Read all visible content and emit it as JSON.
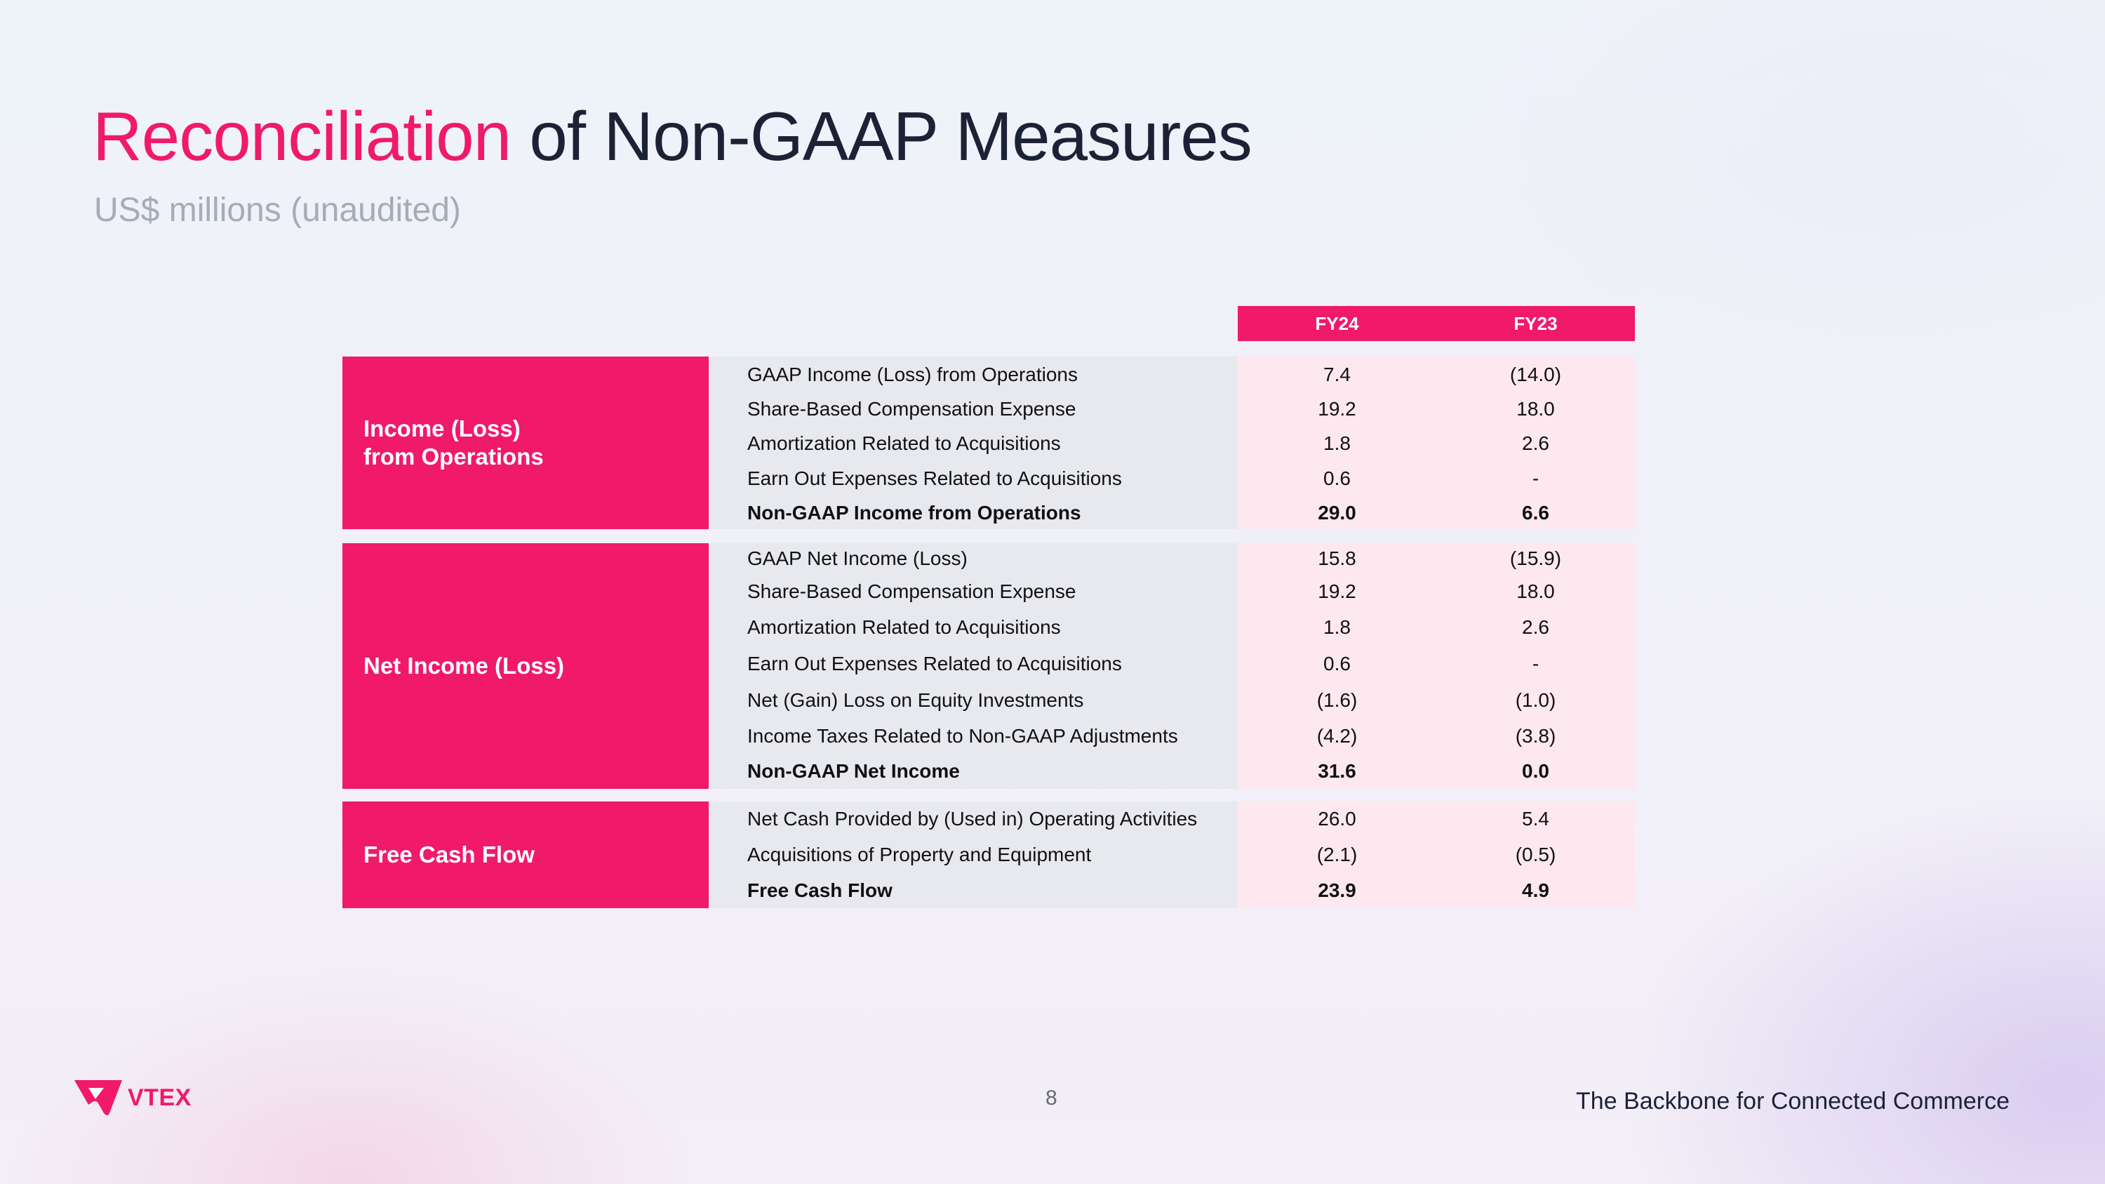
{
  "title": {
    "accent": "Reconciliation",
    "rest": " of Non-GAAP Measures"
  },
  "subtitle": "US$ millions (unaudited)",
  "table": {
    "columns": [
      "FY24",
      "FY23"
    ],
    "groups": [
      {
        "label_lines": [
          "Income (Loss)",
          "from Operations"
        ],
        "rows": [
          {
            "label": "GAAP Income (Loss) from Operations",
            "fy24": "7.4",
            "fy23": "(14.0)",
            "bold": false
          },
          {
            "label": "Share-Based Compensation Expense",
            "fy24": "19.2",
            "fy23": "18.0",
            "bold": false
          },
          {
            "label": "Amortization Related to Acquisitions",
            "fy24": "1.8",
            "fy23": "2.6",
            "bold": false
          },
          {
            "label": "Earn Out Expenses Related to Acquisitions",
            "fy24": "0.6",
            "fy23": "-",
            "bold": false
          },
          {
            "label": "Non-GAAP Income from Operations",
            "fy24": "29.0",
            "fy23": "6.6",
            "bold": true
          }
        ]
      },
      {
        "label_lines": [
          "Net Income (Loss)"
        ],
        "rows": [
          {
            "label": "GAAP Net Income (Loss)",
            "fy24": "15.8",
            "fy23": "(15.9)",
            "bold": false
          },
          {
            "label": "Share-Based Compensation Expense",
            "fy24": "19.2",
            "fy23": "18.0",
            "bold": false
          },
          {
            "label": "Amortization Related to Acquisitions",
            "fy24": "1.8",
            "fy23": "2.6",
            "bold": false
          },
          {
            "label": "Earn Out Expenses Related to Acquisitions",
            "fy24": "0.6",
            "fy23": "-",
            "bold": false
          },
          {
            "label": "Net (Gain) Loss on Equity Investments",
            "fy24": "(1.6)",
            "fy23": "(1.0)",
            "bold": false
          },
          {
            "label": "Income Taxes Related to Non-GAAP Adjustments",
            "fy24": "(4.2)",
            "fy23": "(3.8)",
            "bold": false
          },
          {
            "label": "Non-GAAP Net Income",
            "fy24": "31.6",
            "fy23": "0.0",
            "bold": true
          }
        ]
      },
      {
        "label_lines": [
          "Free Cash Flow"
        ],
        "rows": [
          {
            "label": "Net Cash Provided by (Used in) Operating Activities",
            "fy24": "26.0",
            "fy23": "5.4",
            "bold": false
          },
          {
            "label": "Acquisitions of Property and Equipment",
            "fy24": "(2.1)",
            "fy23": "(0.5)",
            "bold": false
          },
          {
            "label": "Free Cash Flow",
            "fy24": "23.9",
            "fy23": "4.9",
            "bold": true
          }
        ]
      }
    ]
  },
  "footer": {
    "logo_text": "VTEX",
    "page_number": "8",
    "tagline": "The Backbone for Connected Commerce"
  },
  "colors": {
    "accent": "#f0196a",
    "desc_bg": "#e8e9ee",
    "value_bg": "#fde8f0"
  }
}
